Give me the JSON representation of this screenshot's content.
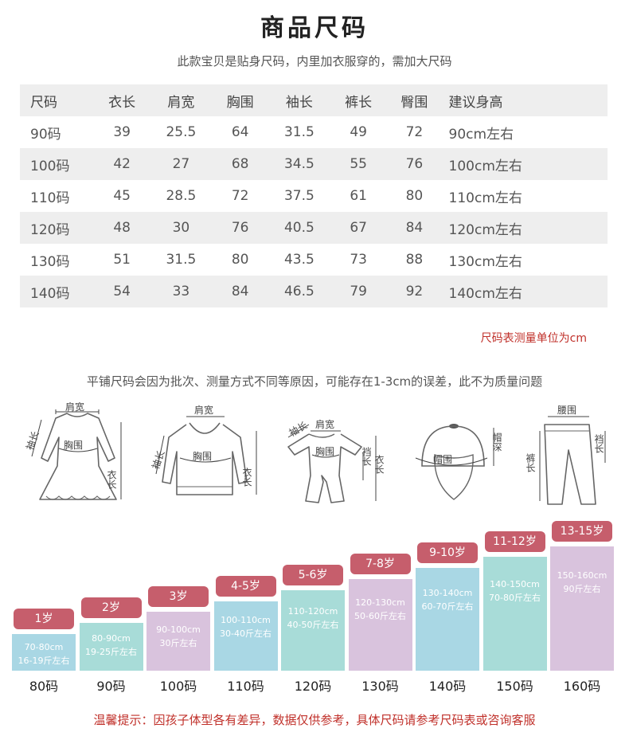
{
  "title": "商品尺码",
  "subtitle": "此款宝贝是贴身尺码，内里加衣服穿的，需加大尺码",
  "table": {
    "headers": [
      "尺码",
      "衣长",
      "肩宽",
      "胸围",
      "袖长",
      "裤长",
      "臀围",
      "建议身高"
    ],
    "rows": [
      [
        "90码",
        "39",
        "25.5",
        "64",
        "31.5",
        "49",
        "72",
        "90cm左右"
      ],
      [
        "100码",
        "42",
        "27",
        "68",
        "34.5",
        "55",
        "76",
        "100cm左右"
      ],
      [
        "110码",
        "45",
        "28.5",
        "72",
        "37.5",
        "61",
        "80",
        "110cm左右"
      ],
      [
        "120码",
        "48",
        "30",
        "76",
        "40.5",
        "67",
        "84",
        "120cm左右"
      ],
      [
        "130码",
        "51",
        "31.5",
        "80",
        "43.5",
        "73",
        "88",
        "130cm左右"
      ],
      [
        "140码",
        "54",
        "33",
        "84",
        "46.5",
        "79",
        "92",
        "140cm左右"
      ]
    ]
  },
  "unit_note": "尺码表测量单位为cm",
  "measure_note": "平铺尺码会因为批次、测量方式不同等原因，可能存在1-3cm的误差，此不为质量问题",
  "diagrams": {
    "dress": {
      "shoulder": "肩宽",
      "sleeve": "袖长",
      "chest": "胸围",
      "length": "衣长"
    },
    "hoodie": {
      "shoulder": "肩宽",
      "sleeve": "袖长",
      "chest": "胸围",
      "length": "衣长"
    },
    "romper": {
      "sleeve": "袖长",
      "shoulder": "肩宽",
      "chest": "胸围",
      "crotch": "裆长",
      "length": "衣长"
    },
    "hat": {
      "circumference": "帽围",
      "depth": "帽深"
    },
    "pants": {
      "waist": "腰围",
      "length": "裤长",
      "crotch": "裆长"
    }
  },
  "age_chart": {
    "colors": [
      "#a9d7e4",
      "#a8dcd8",
      "#d9c3dd",
      "#a9d7e4",
      "#a8dcd8",
      "#d9c3dd",
      "#a9d7e4",
      "#a8dcd8",
      "#d9c3dd"
    ],
    "tag_color": "#c65e6c",
    "items": [
      {
        "age": "1岁",
        "height": "70-80cm",
        "weight": "16-19斤左右",
        "size": "80码"
      },
      {
        "age": "2岁",
        "height": "80-90cm",
        "weight": "19-25斤左右",
        "size": "90码"
      },
      {
        "age": "3岁",
        "height": "90-100cm",
        "weight": "30斤左右",
        "size": "100码"
      },
      {
        "age": "4-5岁",
        "height": "100-110cm",
        "weight": "30-40斤左右",
        "size": "110码"
      },
      {
        "age": "5-6岁",
        "height": "110-120cm",
        "weight": "40-50斤左右",
        "size": "120码"
      },
      {
        "age": "7-8岁",
        "height": "120-130cm",
        "weight": "50-60斤左右",
        "size": "130码"
      },
      {
        "age": "9-10岁",
        "height": "130-140cm",
        "weight": "60-70斤左右",
        "size": "140码"
      },
      {
        "age": "11-12岁",
        "height": "140-150cm",
        "weight": "70-80斤左右",
        "size": "150码"
      },
      {
        "age": "13-15岁",
        "height": "150-160cm",
        "weight": "90斤左右",
        "size": "160码"
      }
    ]
  },
  "tip": "温馨提示：因孩子体型各有差异，数据仅供参考，具体尺码请参考尺码表或咨询客服"
}
